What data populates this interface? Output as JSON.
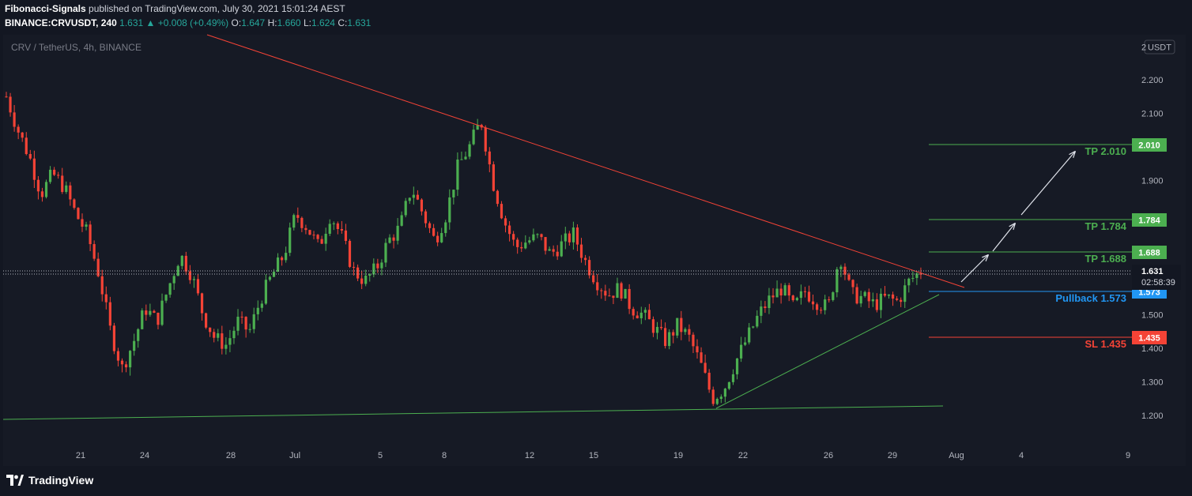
{
  "header": {
    "author": "Fibonacci-Signals",
    "published": "published on TradingView.com, July 30, 2021 15:01:24 AEST",
    "symbol": "BINANCE:CRVUSDT, 240",
    "last": "1.631",
    "change_arrow": "▲",
    "change": "+0.008 (+0.49%)",
    "o_label": "O:",
    "o_value": "1.647",
    "h_label": "H:",
    "h_value": "1.660",
    "l_label": "L:",
    "l_value": "1.624",
    "c_label": "C:",
    "c_value": "1.631"
  },
  "chart_legend": "CRV / TetherUS, 4h, BINANCE",
  "currency_label": "USDT",
  "footer_logo": "TradingView",
  "colors": {
    "up": "#4caf50",
    "down": "#f44336",
    "trend_down": "#f44336",
    "trend_up": "#4caf50",
    "pullback": "#2196f3",
    "background": "#161a25"
  },
  "chart_data": {
    "type": "candlestick",
    "title": "CRV / TetherUS, 4h, BINANCE",
    "x_ticks": [
      "21",
      "24",
      "28",
      "Jul",
      "5",
      "8",
      "12",
      "15",
      "19",
      "22",
      "26",
      "29",
      "Aug",
      "4",
      "9"
    ],
    "y_ticks": [
      "2.200",
      "2.100",
      "1.900",
      "1.500",
      "1.400",
      "1.300",
      "1.200"
    ],
    "ylim": [
      1.15,
      2.3
    ],
    "price_path": [
      [
        0,
        2.15
      ],
      [
        1,
        2.05
      ],
      [
        2,
        1.97
      ],
      [
        3,
        1.86
      ],
      [
        4,
        1.92
      ],
      [
        5,
        1.88
      ],
      [
        6,
        1.8
      ],
      [
        7,
        1.74
      ],
      [
        8,
        1.62
      ],
      [
        9,
        1.45
      ],
      [
        10,
        1.34
      ],
      [
        11,
        1.42
      ],
      [
        12,
        1.52
      ],
      [
        13,
        1.48
      ],
      [
        14,
        1.58
      ],
      [
        15,
        1.68
      ],
      [
        16,
        1.62
      ],
      [
        17,
        1.5
      ],
      [
        18,
        1.43
      ],
      [
        19,
        1.41
      ],
      [
        20,
        1.48
      ],
      [
        21,
        1.45
      ],
      [
        22,
        1.55
      ],
      [
        23,
        1.62
      ],
      [
        24,
        1.68
      ],
      [
        25,
        1.8
      ],
      [
        26,
        1.76
      ],
      [
        27,
        1.7
      ],
      [
        28,
        1.8
      ],
      [
        29,
        1.73
      ],
      [
        30,
        1.63
      ],
      [
        31,
        1.6
      ],
      [
        32,
        1.64
      ],
      [
        33,
        1.72
      ],
      [
        34,
        1.76
      ],
      [
        35,
        1.88
      ],
      [
        36,
        1.8
      ],
      [
        37,
        1.72
      ],
      [
        38,
        1.8
      ],
      [
        39,
        1.94
      ],
      [
        40,
        2.0
      ],
      [
        41,
        2.08
      ],
      [
        42,
        1.9
      ],
      [
        43,
        1.78
      ],
      [
        44,
        1.7
      ],
      [
        45,
        1.72
      ],
      [
        46,
        1.73
      ],
      [
        47,
        1.68
      ],
      [
        48,
        1.71
      ],
      [
        49,
        1.74
      ],
      [
        50,
        1.66
      ],
      [
        51,
        1.6
      ],
      [
        52,
        1.56
      ],
      [
        53,
        1.58
      ],
      [
        54,
        1.52
      ],
      [
        55,
        1.5
      ],
      [
        56,
        1.46
      ],
      [
        57,
        1.42
      ],
      [
        58,
        1.47
      ],
      [
        59,
        1.43
      ],
      [
        60,
        1.35
      ],
      [
        61,
        1.25
      ],
      [
        62,
        1.28
      ],
      [
        63,
        1.36
      ],
      [
        64,
        1.43
      ],
      [
        65,
        1.5
      ],
      [
        66,
        1.55
      ],
      [
        67,
        1.58
      ],
      [
        68,
        1.52
      ],
      [
        69,
        1.57
      ],
      [
        70,
        1.54
      ],
      [
        71,
        1.52
      ],
      [
        72,
        1.68
      ],
      [
        73,
        1.56
      ],
      [
        74,
        1.55
      ],
      [
        75,
        1.53
      ],
      [
        76,
        1.55
      ],
      [
        77,
        1.54
      ],
      [
        78,
        1.6
      ],
      [
        79,
        1.63
      ]
    ],
    "trendlines": [
      {
        "name": "descending resistance",
        "color": "#f44336",
        "from": [
          "Jun 16",
          2.42
        ],
        "to": [
          "Jul 30",
          1.58
        ]
      },
      {
        "name": "ascending support",
        "color": "#4caf50",
        "from": [
          "Jul 20",
          1.22
        ],
        "to": [
          "Jul 31",
          1.56
        ]
      },
      {
        "name": "base support",
        "color": "#4caf50",
        "from": [
          "Jun 16",
          1.19
        ],
        "to": [
          "Jul 31",
          1.23
        ]
      }
    ],
    "levels": [
      {
        "label": "TP 2.010",
        "value": 2.01,
        "badge": "2.010",
        "color": "#4caf50"
      },
      {
        "label": "TP 1.784",
        "value": 1.784,
        "badge": "1.784",
        "color": "#4caf50"
      },
      {
        "label": "TP 1.688",
        "value": 1.688,
        "badge": "1.688",
        "color": "#4caf50"
      },
      {
        "label": "Pullback 1.573",
        "value": 1.573,
        "badge": "1.573",
        "color": "#2196f3"
      },
      {
        "label": "SL 1.435",
        "value": 1.435,
        "badge": "1.435",
        "color": "#f44336"
      }
    ],
    "current_price": {
      "value": 1.631,
      "badge": "1.631",
      "countdown": "02:58:39"
    },
    "arrows": [
      {
        "from": [
          1.58,
          "Jul 31"
        ],
        "to": [
          1.69,
          "Aug 1"
        ]
      },
      {
        "from": [
          1.71,
          "Aug 1"
        ],
        "to": [
          1.78,
          "Aug 2"
        ]
      },
      {
        "from": [
          1.81,
          "Aug 2"
        ],
        "to": [
          2.01,
          "Aug 4"
        ]
      }
    ]
  }
}
